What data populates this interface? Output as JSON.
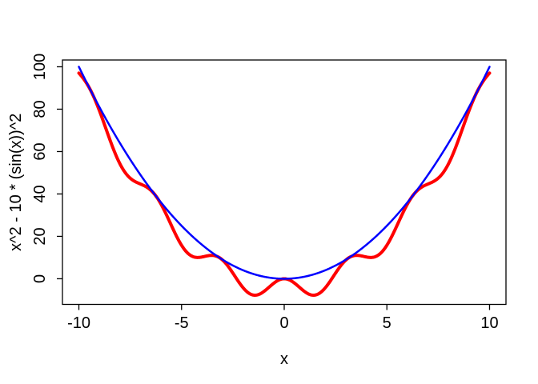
{
  "window": {
    "background": "#ffffff"
  },
  "chart_data": {
    "type": "line",
    "title": "",
    "xlabel": "x",
    "ylabel": "x^2 - 10 * (sin(x))^2",
    "x_range": [
      -10,
      10
    ],
    "xlim": [
      -10.8,
      10.8
    ],
    "ylim": [
      -12.1,
      103.2
    ],
    "x_ticks": [
      -10,
      -5,
      0,
      5,
      10
    ],
    "y_ticks": [
      0,
      20,
      40,
      60,
      80,
      100
    ],
    "grid": false,
    "legend": "none",
    "axis_color": "#000000",
    "text_color": "#000000",
    "series": [
      {
        "id": "red-curve",
        "name": "x^2 - 10 * (sin(x))^2",
        "formula": "y = x^2 - 10*sin(x)^2",
        "expr": "x*x - 10*Math.sin(x)*Math.sin(x)",
        "color": "#ff0000",
        "line_width": 4,
        "sample_step": 0.02
      },
      {
        "id": "blue-curve",
        "name": "x^2",
        "formula": "y = x^2",
        "expr": "x*x",
        "color": "#0000ff",
        "line_width": 2.5,
        "sample_step": 0.02
      }
    ],
    "notable_points": [
      {
        "desc": "curves touch at origin",
        "x": 0,
        "y": 0
      },
      {
        "desc": "red local minimum",
        "x": -1.43,
        "y": -7.76
      },
      {
        "desc": "red local minimum",
        "x": 1.43,
        "y": -7.76
      },
      {
        "desc": "red small bump local max",
        "x": 3.54,
        "y": 11.0
      },
      {
        "desc": "red small bump local min",
        "x": 4.21,
        "y": 10.05
      },
      {
        "desc": "curves cross",
        "x": 3.1416,
        "y": 9.87
      },
      {
        "desc": "curves cross",
        "x": 6.2832,
        "y": 39.48
      },
      {
        "desc": "curves cross",
        "x": 9.4248,
        "y": 88.83
      },
      {
        "desc": "red endpoint",
        "x": 10,
        "y": 97.04
      },
      {
        "desc": "blue endpoint",
        "x": 10,
        "y": 100
      }
    ]
  }
}
